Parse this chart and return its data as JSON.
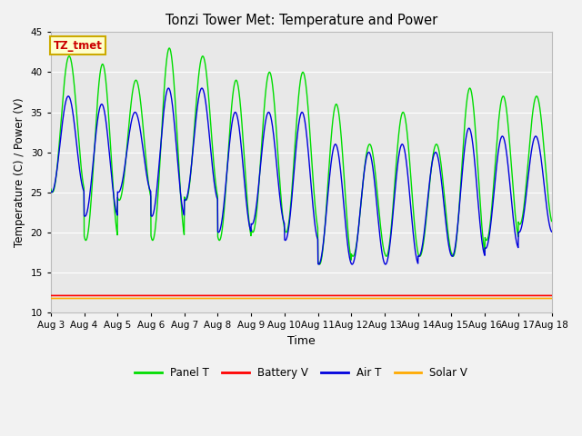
{
  "title": "Tonzi Tower Met: Temperature and Power",
  "xlabel": "Time",
  "ylabel": "Temperature (C) / Power (V)",
  "ylim": [
    10,
    45
  ],
  "yticks": [
    10,
    15,
    20,
    25,
    30,
    35,
    40,
    45
  ],
  "x_tick_labels": [
    "Aug 3",
    "Aug 4",
    "Aug 5",
    "Aug 6",
    "Aug 7",
    "Aug 8",
    "Aug 9",
    "Aug 10",
    "Aug 11",
    "Aug 12",
    "Aug 13",
    "Aug 14",
    "Aug 15",
    "Aug 16",
    "Aug 17",
    "Aug 18"
  ],
  "annotation_text": "TZ_tmet",
  "annotation_box_facecolor": "#ffffcc",
  "annotation_box_edgecolor": "#ccaa00",
  "annotation_text_color": "#cc0000",
  "panel_T_color": "#00dd00",
  "battery_V_color": "#ff0000",
  "air_T_color": "#0000dd",
  "solar_V_color": "#ffaa00",
  "bg_color": "#e8e8e8",
  "grid_color": "#ffffff",
  "fig_bg_color": "#f2f2f2"
}
